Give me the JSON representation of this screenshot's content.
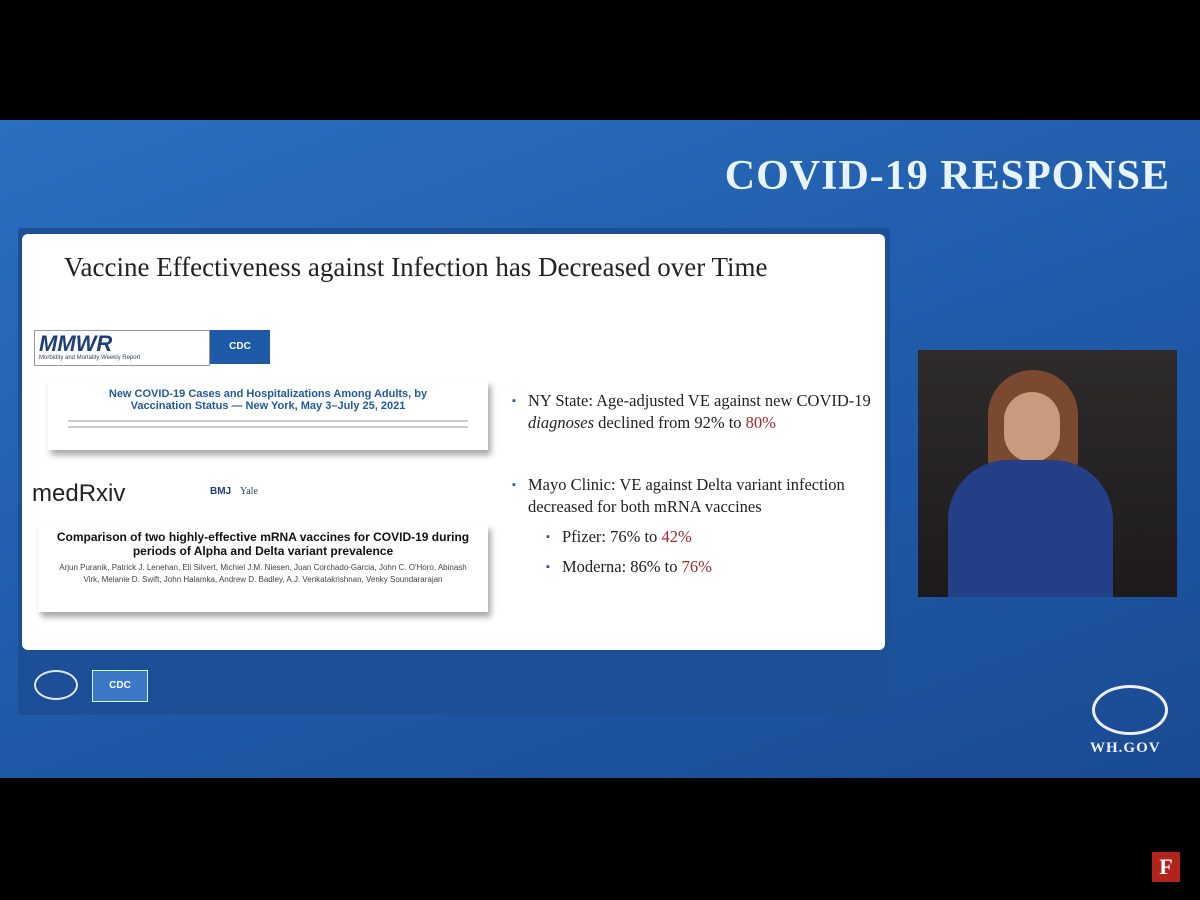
{
  "header": {
    "title": "COVID-19 RESPONSE"
  },
  "slide": {
    "title": "Vaccine Effectiveness against Infection has Decreased over Time",
    "mmwr": {
      "logo": "MMWR",
      "subtitle": "Morbidity and Mortality Weekly Report",
      "badge": "CDC",
      "article_title": "New COVID-19 Cases and Hospitalizations Among Adults, by Vaccination Status — New York, May 3–July 25, 2021"
    },
    "medrxiv": {
      "logo": "medRxiv",
      "partners": [
        "BMJ",
        "Yale"
      ],
      "article_title": "Comparison of two highly-effective mRNA vaccines for COVID-19 during periods of Alpha and Delta variant prevalence",
      "authors": "Arjun Puranik, Patrick J. Lenehan, Eli Silvert, Michiel J.M. Niesen, Juan Corchado-Garcia, John C. O'Horo, Abinash Virk, Melanie D. Swift, John Halamka, Andrew D. Badley, A.J. Venkatakrishnan, Venky Soundararajan"
    },
    "bullets": [
      {
        "parts": [
          "NY State: Age-adjusted VE against new COVID-19 ",
          "diagnoses",
          " declined from 92% to ",
          "80%"
        ]
      },
      {
        "parts": [
          "Mayo Clinic: VE against Delta variant infection decreased for both mRNA vaccines"
        ],
        "sub": [
          {
            "parts": [
              "Pfizer: 76% to ",
              "42%"
            ]
          },
          {
            "parts": [
              "Moderna: 86% to ",
              "76%"
            ]
          }
        ]
      }
    ],
    "footer_badge": "CDC"
  },
  "corner": {
    "wh": "WH.GOV",
    "brand": "F"
  }
}
